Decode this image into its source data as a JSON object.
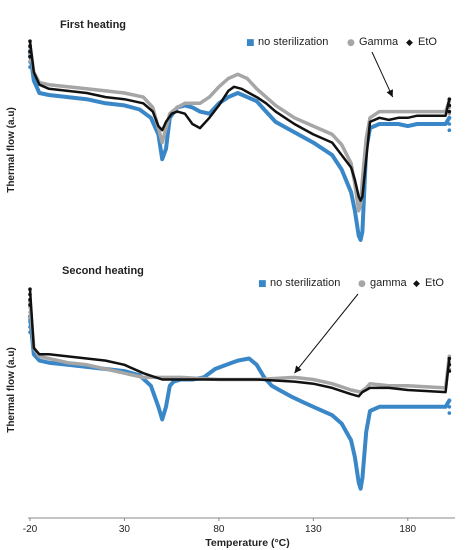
{
  "chart_data": [
    {
      "type": "line",
      "title": "First heating",
      "ylabel": "Thermal flow (a.u)",
      "xlim": [
        -20,
        205
      ],
      "ylim": [
        0,
        100
      ],
      "yticks": false,
      "grid": false,
      "legend": "top-right",
      "legend_markers": [
        "■",
        "●",
        "◆"
      ],
      "annotation_label": "Gamma",
      "annotation_target": [
        172,
        70
      ],
      "series": [
        {
          "name": "no sterilization",
          "color": "#3a87c8",
          "x": [
            -20,
            -18,
            -15,
            -10,
            0,
            10,
            20,
            30,
            38,
            44,
            48,
            50,
            52,
            54,
            58,
            62,
            66,
            70,
            75,
            80,
            85,
            90,
            95,
            100,
            105,
            110,
            120,
            130,
            140,
            145,
            150,
            152,
            154,
            155,
            156,
            158,
            160,
            165,
            170,
            175,
            180,
            185,
            190,
            195,
            200,
            202
          ],
          "y": [
            92,
            78,
            72,
            71,
            70,
            69,
            67,
            66,
            64,
            60,
            52,
            40,
            45,
            60,
            65,
            66,
            65,
            63,
            62,
            67,
            70,
            72,
            70,
            68,
            63,
            58,
            53,
            48,
            42,
            35,
            24,
            15,
            3,
            1,
            5,
            45,
            55,
            57,
            57,
            57,
            56,
            57,
            57,
            57,
            57,
            60
          ]
        },
        {
          "name": "Gamma",
          "color": "#a6a6a6",
          "x": [
            -20,
            -18,
            -15,
            -10,
            0,
            10,
            20,
            30,
            40,
            45,
            48,
            50,
            52,
            54,
            58,
            62,
            66,
            70,
            75,
            80,
            85,
            90,
            95,
            100,
            105,
            110,
            120,
            130,
            140,
            145,
            150,
            152,
            154,
            155,
            156,
            158,
            160,
            165,
            170,
            175,
            180,
            190,
            200,
            202
          ],
          "y": [
            95,
            82,
            77,
            76,
            75,
            74,
            73,
            72,
            70,
            65,
            55,
            48,
            55,
            62,
            65,
            67,
            67,
            67,
            70,
            75,
            79,
            81,
            79,
            74,
            70,
            66,
            60,
            56,
            52,
            47,
            38,
            28,
            15,
            18,
            30,
            50,
            60,
            63,
            63,
            63,
            63,
            63,
            63,
            68
          ]
        },
        {
          "name": "EtO",
          "color": "#111111",
          "x": [
            -20,
            -18,
            -15,
            -10,
            0,
            10,
            20,
            30,
            40,
            45,
            48,
            50,
            52,
            55,
            58,
            62,
            66,
            70,
            75,
            80,
            85,
            88,
            92,
            96,
            100,
            105,
            110,
            120,
            130,
            140,
            145,
            150,
            152,
            154,
            155,
            156,
            158,
            160,
            165,
            170,
            175,
            180,
            185,
            190,
            200,
            202
          ],
          "y": [
            97,
            82,
            76,
            74,
            73,
            72,
            70,
            69,
            67,
            63,
            56,
            54,
            58,
            62,
            63,
            62,
            57,
            55,
            60,
            66,
            73,
            75,
            74,
            72,
            70,
            67,
            63,
            57,
            52,
            48,
            42,
            36,
            30,
            22,
            20,
            22,
            40,
            58,
            60,
            59,
            60,
            60,
            61,
            61,
            61,
            69
          ]
        }
      ]
    },
    {
      "type": "line",
      "title": "Second heating",
      "xlabel": "Temperature (°C)",
      "ylabel": "Thermal flow (a.u)",
      "xlim": [
        -20,
        205
      ],
      "ylim": [
        0,
        100
      ],
      "xticks": [
        -20,
        30,
        80,
        130,
        180
      ],
      "yticks": false,
      "grid": false,
      "legend": "top-right",
      "legend_markers": [
        "■",
        "●",
        "◆"
      ],
      "annotation_target": [
        120,
        58
      ],
      "series": [
        {
          "name": "no sterilization",
          "color": "#3a87c8",
          "x": [
            -20,
            -18,
            -15,
            -10,
            0,
            10,
            20,
            30,
            38,
            44,
            48,
            50,
            52,
            54,
            56,
            60,
            66,
            72,
            78,
            84,
            90,
            96,
            100,
            104,
            108,
            112,
            118,
            125,
            130,
            140,
            145,
            150,
            152,
            154,
            155,
            156,
            158,
            160,
            165,
            170,
            175,
            180,
            190,
            200,
            202
          ],
          "y": [
            85,
            67,
            64,
            63,
            62,
            61,
            60,
            59,
            57,
            52,
            42,
            36,
            42,
            52,
            54,
            55,
            55,
            56,
            60,
            62,
            64,
            65,
            62,
            56,
            52,
            50,
            47,
            44,
            42,
            38,
            34,
            26,
            18,
            6,
            3,
            8,
            30,
            40,
            42,
            42,
            42,
            42,
            42,
            42,
            45
          ]
        },
        {
          "name": "gamma",
          "color": "#a6a6a6",
          "x": [
            -20,
            -18,
            -15,
            -10,
            0,
            10,
            20,
            30,
            40,
            50,
            60,
            80,
            100,
            120,
            130,
            140,
            150,
            155,
            158,
            160,
            170,
            180,
            200,
            202
          ],
          "y": [
            92,
            70,
            66,
            65,
            63,
            62,
            60,
            58,
            56,
            56,
            56,
            55,
            55,
            56,
            55,
            53,
            50,
            49,
            51,
            53,
            52,
            52,
            51,
            66
          ]
        },
        {
          "name": "EtO",
          "color": "#111111",
          "x": [
            -20,
            -18,
            -15,
            -10,
            0,
            10,
            20,
            30,
            40,
            50,
            60,
            80,
            100,
            120,
            130,
            140,
            150,
            154,
            156,
            160,
            170,
            180,
            200,
            202
          ],
          "y": [
            98,
            70,
            67,
            67,
            66,
            65,
            64,
            62,
            58,
            55,
            55,
            55,
            55,
            54,
            53,
            51,
            48,
            47,
            49,
            51,
            51,
            50,
            49,
            65
          ]
        }
      ]
    }
  ]
}
